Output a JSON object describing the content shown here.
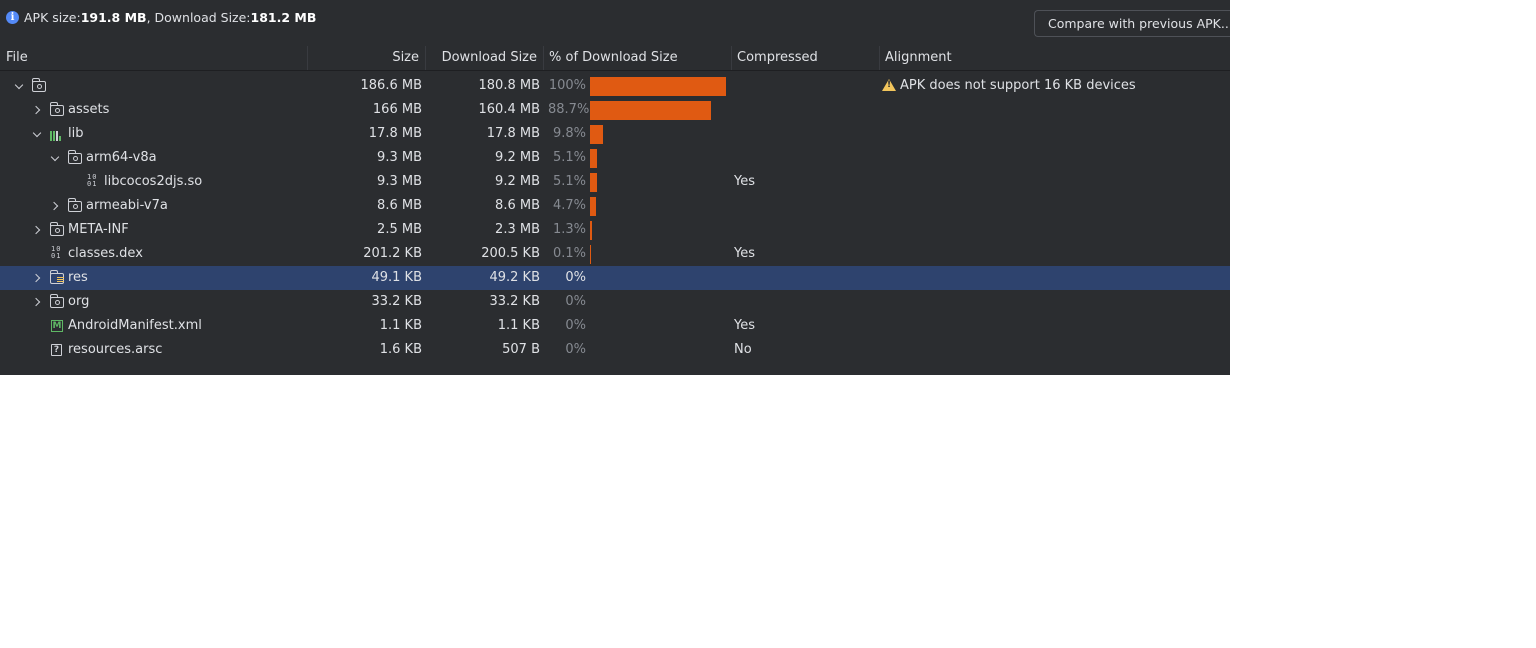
{
  "summary": {
    "apk_size_label": "APK size: ",
    "apk_size_value": "191.8 MB",
    "separator": ", Download Size: ",
    "download_size_value": "181.2 MB"
  },
  "compare_button": "Compare with previous APK...",
  "columns": {
    "file": "File",
    "size": "Size",
    "download_size": "Download Size",
    "percent": "% of Download Size",
    "compressed": "Compressed",
    "alignment": "Alignment"
  },
  "rows": [
    {
      "name": "",
      "size": "186.6 MB",
      "download": "180.8 MB",
      "percent": "100%",
      "pct_value": 100,
      "compressed": "",
      "alignment": "APK does not support 16 KB devices"
    },
    {
      "name": "assets",
      "size": "166 MB",
      "download": "160.4 MB",
      "percent": "88.7%",
      "pct_value": 88.7,
      "compressed": "",
      "alignment": ""
    },
    {
      "name": "lib",
      "size": "17.8 MB",
      "download": "17.8 MB",
      "percent": "9.8%",
      "pct_value": 9.8,
      "compressed": "",
      "alignment": ""
    },
    {
      "name": "arm64-v8a",
      "size": "9.3 MB",
      "download": "9.2 MB",
      "percent": "5.1%",
      "pct_value": 5.1,
      "compressed": "",
      "alignment": ""
    },
    {
      "name": "libcocos2djs.so",
      "size": "9.3 MB",
      "download": "9.2 MB",
      "percent": "5.1%",
      "pct_value": 5.1,
      "compressed": "Yes",
      "alignment": ""
    },
    {
      "name": "armeabi-v7a",
      "size": "8.6 MB",
      "download": "8.6 MB",
      "percent": "4.7%",
      "pct_value": 4.7,
      "compressed": "",
      "alignment": ""
    },
    {
      "name": "META-INF",
      "size": "2.5 MB",
      "download": "2.3 MB",
      "percent": "1.3%",
      "pct_value": 1.3,
      "compressed": "",
      "alignment": ""
    },
    {
      "name": "classes.dex",
      "size": "201.2 KB",
      "download": "200.5 KB",
      "percent": "0.1%",
      "pct_value": 0.1,
      "compressed": "Yes",
      "alignment": ""
    },
    {
      "name": "res",
      "size": "49.1 KB",
      "download": "49.2 KB",
      "percent": "0%",
      "pct_value": 0,
      "compressed": "",
      "alignment": ""
    },
    {
      "name": "org",
      "size": "33.2 KB",
      "download": "33.2 KB",
      "percent": "0%",
      "pct_value": 0,
      "compressed": "",
      "alignment": ""
    },
    {
      "name": "AndroidManifest.xml",
      "size": "1.1 KB",
      "download": "1.1 KB",
      "percent": "0%",
      "pct_value": 0,
      "compressed": "Yes",
      "alignment": ""
    },
    {
      "name": "resources.arsc",
      "size": "1.6 KB",
      "download": "507 B",
      "percent": "0%",
      "pct_value": 0,
      "compressed": "No",
      "alignment": ""
    }
  ],
  "colors": {
    "background": "#2b2d30",
    "bar": "#e05a12",
    "selection": "#2e436e",
    "warning": "#f2c55c",
    "info": "#548af7"
  }
}
